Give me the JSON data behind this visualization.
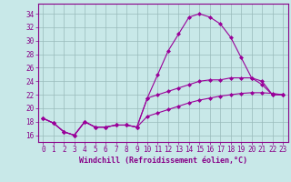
{
  "x": [
    0,
    1,
    2,
    3,
    4,
    5,
    6,
    7,
    8,
    9,
    10,
    11,
    12,
    13,
    14,
    15,
    16,
    17,
    18,
    19,
    20,
    21,
    22,
    23
  ],
  "line1": [
    18.5,
    17.8,
    16.5,
    16.0,
    18.0,
    17.2,
    17.2,
    17.5,
    17.5,
    17.2,
    21.5,
    25.0,
    28.5,
    31.0,
    33.5,
    34.0,
    33.5,
    32.5,
    30.5,
    27.5,
    24.5,
    24.0,
    22.0,
    22.0
  ],
  "line2": [
    18.5,
    17.8,
    16.5,
    16.0,
    18.0,
    17.2,
    17.2,
    17.5,
    17.5,
    17.2,
    21.5,
    22.0,
    22.5,
    23.0,
    23.5,
    24.0,
    24.2,
    24.2,
    24.5,
    24.5,
    24.5,
    23.5,
    22.0,
    22.0
  ],
  "line3": [
    18.5,
    17.8,
    16.5,
    16.0,
    18.0,
    17.2,
    17.2,
    17.5,
    17.5,
    17.2,
    18.8,
    19.3,
    19.8,
    20.3,
    20.8,
    21.2,
    21.5,
    21.8,
    22.0,
    22.2,
    22.3,
    22.3,
    22.2,
    22.0
  ],
  "line_color": "#990099",
  "bg_color": "#c8e8e8",
  "grid_color": "#99bbbb",
  "xlabel": "Windchill (Refroidissement éolien,°C)",
  "ylabel_ticks": [
    16,
    18,
    20,
    22,
    24,
    26,
    28,
    30,
    32,
    34
  ],
  "ylim": [
    15.0,
    35.5
  ],
  "xlim": [
    -0.5,
    23.5
  ],
  "xticks": [
    0,
    1,
    2,
    3,
    4,
    5,
    6,
    7,
    8,
    9,
    10,
    11,
    12,
    13,
    14,
    15,
    16,
    17,
    18,
    19,
    20,
    21,
    22,
    23
  ],
  "marker": "D",
  "marker_size": 2.0,
  "line_width": 0.8,
  "axis_color": "#880088",
  "tick_fontsize": 5.5,
  "xlabel_fontsize": 6.0
}
